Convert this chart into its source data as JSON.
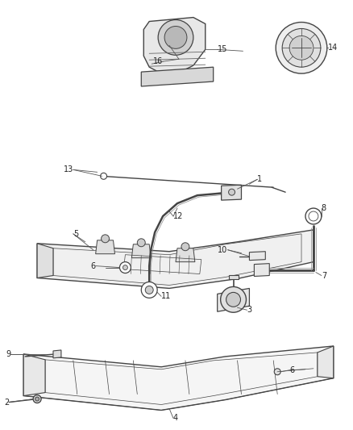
{
  "background_color": "#ffffff",
  "line_color": "#444444",
  "label_color": "#222222",
  "fig_width": 4.38,
  "fig_height": 5.33,
  "dpi": 100,
  "callout_lw": 0.6,
  "part_lw": 0.9,
  "label_fs": 7.0
}
